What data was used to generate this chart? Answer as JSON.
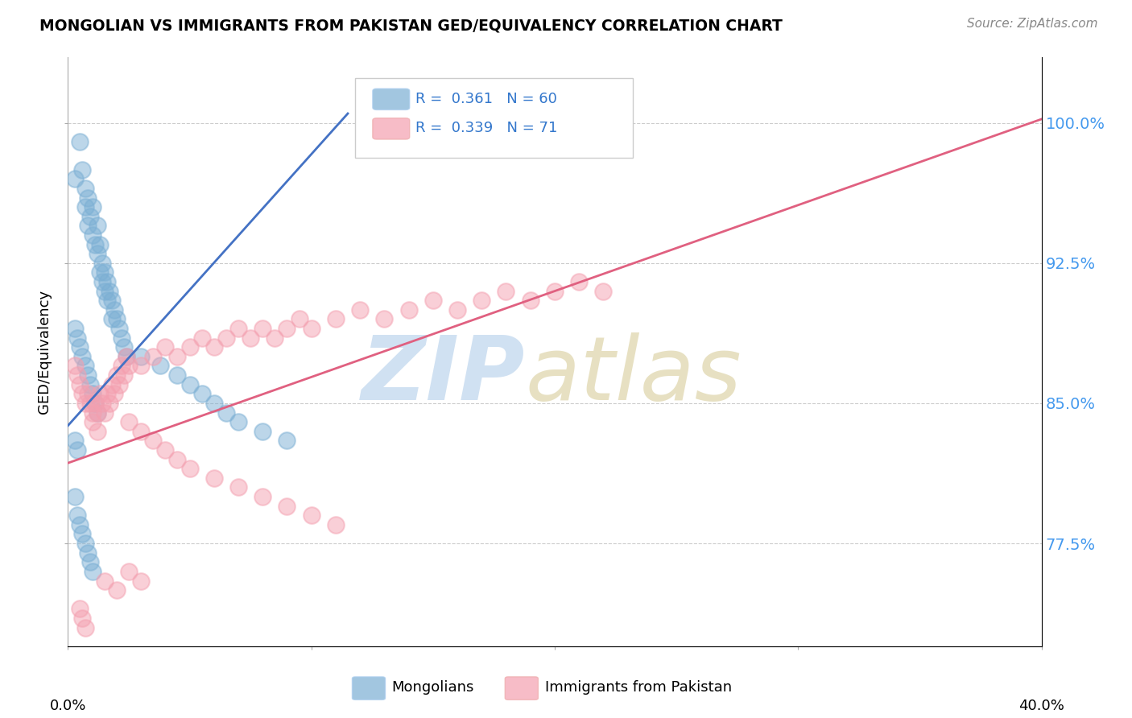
{
  "title": "MONGOLIAN VS IMMIGRANTS FROM PAKISTAN GED/EQUIVALENCY CORRELATION CHART",
  "source": "Source: ZipAtlas.com",
  "ylabel": "GED/Equivalency",
  "ytick_labels": [
    "77.5%",
    "85.0%",
    "92.5%",
    "100.0%"
  ],
  "ytick_values": [
    0.775,
    0.85,
    0.925,
    1.0
  ],
  "xmin": 0.0,
  "xmax": 0.4,
  "ymin": 0.72,
  "ymax": 1.035,
  "blue_R": 0.361,
  "blue_N": 60,
  "pink_R": 0.339,
  "pink_N": 71,
  "blue_color": "#7BAFD4",
  "pink_color": "#F4A0B0",
  "blue_line_color": "#4472C4",
  "pink_line_color": "#E06080",
  "legend_label_blue": "Mongolians",
  "legend_label_pink": "Immigrants from Pakistan",
  "blue_line_x0": 0.0,
  "blue_line_y0": 0.838,
  "blue_line_x1": 0.115,
  "blue_line_y1": 1.005,
  "pink_line_x0": 0.0,
  "pink_line_y0": 0.818,
  "pink_line_x1": 0.4,
  "pink_line_y1": 1.002,
  "blue_x": [
    0.003,
    0.005,
    0.006,
    0.007,
    0.007,
    0.008,
    0.008,
    0.009,
    0.01,
    0.01,
    0.011,
    0.012,
    0.012,
    0.013,
    0.013,
    0.014,
    0.014,
    0.015,
    0.015,
    0.016,
    0.016,
    0.017,
    0.018,
    0.018,
    0.019,
    0.02,
    0.021,
    0.022,
    0.023,
    0.024,
    0.003,
    0.004,
    0.005,
    0.006,
    0.007,
    0.008,
    0.009,
    0.01,
    0.011,
    0.012,
    0.03,
    0.038,
    0.045,
    0.05,
    0.055,
    0.06,
    0.065,
    0.07,
    0.08,
    0.09,
    0.003,
    0.004,
    0.005,
    0.006,
    0.007,
    0.008,
    0.009,
    0.01,
    0.003,
    0.004
  ],
  "blue_y": [
    0.97,
    0.99,
    0.975,
    0.965,
    0.955,
    0.96,
    0.945,
    0.95,
    0.955,
    0.94,
    0.935,
    0.945,
    0.93,
    0.935,
    0.92,
    0.925,
    0.915,
    0.92,
    0.91,
    0.915,
    0.905,
    0.91,
    0.905,
    0.895,
    0.9,
    0.895,
    0.89,
    0.885,
    0.88,
    0.875,
    0.89,
    0.885,
    0.88,
    0.875,
    0.87,
    0.865,
    0.86,
    0.855,
    0.85,
    0.845,
    0.875,
    0.87,
    0.865,
    0.86,
    0.855,
    0.85,
    0.845,
    0.84,
    0.835,
    0.83,
    0.8,
    0.79,
    0.785,
    0.78,
    0.775,
    0.77,
    0.765,
    0.76,
    0.83,
    0.825
  ],
  "pink_x": [
    0.003,
    0.004,
    0.005,
    0.006,
    0.007,
    0.008,
    0.009,
    0.01,
    0.011,
    0.012,
    0.013,
    0.014,
    0.015,
    0.016,
    0.017,
    0.018,
    0.019,
    0.02,
    0.021,
    0.022,
    0.023,
    0.024,
    0.025,
    0.03,
    0.035,
    0.04,
    0.045,
    0.05,
    0.055,
    0.06,
    0.065,
    0.07,
    0.075,
    0.08,
    0.085,
    0.09,
    0.095,
    0.1,
    0.11,
    0.12,
    0.13,
    0.14,
    0.15,
    0.16,
    0.17,
    0.18,
    0.19,
    0.2,
    0.21,
    0.22,
    0.025,
    0.03,
    0.035,
    0.04,
    0.045,
    0.05,
    0.06,
    0.07,
    0.08,
    0.09,
    0.1,
    0.005,
    0.006,
    0.007,
    0.01,
    0.012,
    0.015,
    0.02,
    0.025,
    0.03,
    0.11
  ],
  "pink_y": [
    0.87,
    0.865,
    0.86,
    0.855,
    0.85,
    0.855,
    0.85,
    0.845,
    0.85,
    0.845,
    0.855,
    0.85,
    0.845,
    0.855,
    0.85,
    0.86,
    0.855,
    0.865,
    0.86,
    0.87,
    0.865,
    0.875,
    0.87,
    0.87,
    0.875,
    0.88,
    0.875,
    0.88,
    0.885,
    0.88,
    0.885,
    0.89,
    0.885,
    0.89,
    0.885,
    0.89,
    0.895,
    0.89,
    0.895,
    0.9,
    0.895,
    0.9,
    0.905,
    0.9,
    0.905,
    0.91,
    0.905,
    0.91,
    0.915,
    0.91,
    0.84,
    0.835,
    0.83,
    0.825,
    0.82,
    0.815,
    0.81,
    0.805,
    0.8,
    0.795,
    0.79,
    0.74,
    0.735,
    0.73,
    0.84,
    0.835,
    0.755,
    0.75,
    0.76,
    0.755,
    0.785
  ]
}
